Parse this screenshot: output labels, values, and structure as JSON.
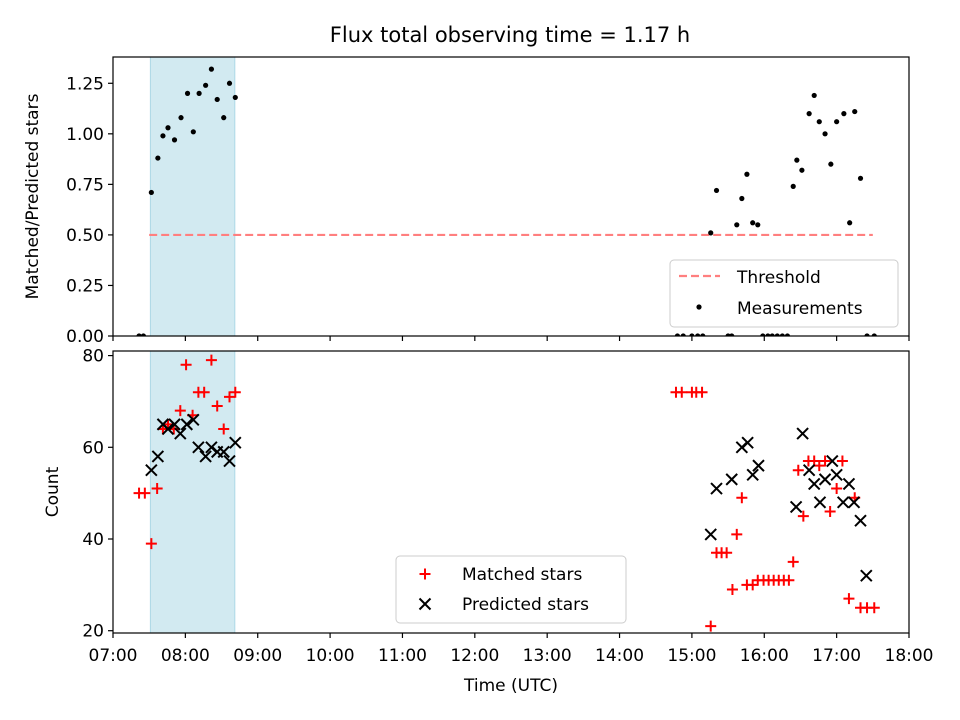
{
  "title": "Flux total observing time = 1.17 h",
  "chart_data": [
    {
      "type": "scatter",
      "ylabel": "Matched/Predicted stars",
      "xlim": [
        7.0,
        18.0
      ],
      "ylim": [
        0,
        1.38
      ],
      "yticks": [
        "0.00",
        "0.25",
        "0.50",
        "0.75",
        "1.00",
        "1.25"
      ],
      "shaded_interval": {
        "start": "07:31",
        "end": "08:41",
        "color": "#add8e6"
      },
      "threshold": {
        "name": "Threshold",
        "value": 0.5,
        "x_range": [
          7.5,
          17.5
        ],
        "color": "#ff7f7f"
      },
      "series": [
        {
          "name": "Measurements",
          "color": "#000000",
          "x": [
            7.36,
            7.42,
            7.53,
            7.62,
            7.69,
            7.76,
            7.85,
            7.94,
            8.03,
            8.11,
            8.19,
            8.28,
            8.36,
            8.44,
            8.53,
            8.61,
            8.69,
            14.8,
            14.88,
            15.0,
            15.08,
            15.15,
            15.26,
            15.34,
            15.5,
            15.55,
            15.62,
            15.69,
            15.76,
            15.84,
            15.91,
            15.98,
            16.05,
            16.11,
            16.18,
            16.25,
            16.32,
            16.4,
            16.45,
            16.52,
            16.62,
            16.69,
            16.76,
            16.84,
            16.92,
            17.0,
            17.1,
            17.18,
            17.25,
            17.33,
            17.42,
            17.52
          ],
          "y": [
            0,
            0,
            0.71,
            0.88,
            0.99,
            1.03,
            0.97,
            1.08,
            1.2,
            1.01,
            1.2,
            1.24,
            1.32,
            1.17,
            1.08,
            1.25,
            1.18,
            0,
            0,
            0,
            0,
            0,
            0.51,
            0.72,
            0,
            0,
            0.55,
            0.68,
            0.8,
            0.56,
            0.55,
            0,
            0,
            0,
            0,
            0,
            0,
            0.74,
            0.87,
            0.82,
            1.1,
            1.19,
            1.06,
            1.0,
            0.85,
            1.06,
            1.1,
            0.56,
            1.11,
            0.78,
            0,
            0
          ]
        }
      ],
      "legend": {
        "position": "lower-right",
        "entries": [
          "Threshold",
          "Measurements"
        ]
      }
    },
    {
      "type": "scatter",
      "xlabel": "Time (UTC)",
      "ylabel": "Count",
      "xlim": [
        7.0,
        18.0
      ],
      "ylim": [
        19.5,
        81
      ],
      "yticks": [
        "20",
        "40",
        "60",
        "80"
      ],
      "xticks": [
        "07:00",
        "08:00",
        "09:00",
        "10:00",
        "11:00",
        "12:00",
        "13:00",
        "14:00",
        "15:00",
        "16:00",
        "17:00",
        "18:00"
      ],
      "shaded_interval": {
        "start": "07:31",
        "end": "08:41",
        "color": "#add8e6"
      },
      "series": [
        {
          "name": "Matched stars",
          "marker": "plus",
          "color": "#ff0000",
          "x": [
            7.36,
            7.44,
            7.53,
            7.61,
            7.69,
            7.76,
            7.84,
            7.93,
            8.01,
            8.1,
            8.18,
            8.26,
            8.36,
            8.44,
            8.53,
            8.61,
            8.69,
            14.78,
            14.86,
            15.0,
            15.06,
            15.14,
            15.26,
            15.34,
            15.41,
            15.48,
            15.56,
            15.62,
            15.69,
            15.76,
            15.84,
            15.91,
            15.99,
            16.06,
            16.13,
            16.2,
            16.27,
            16.34,
            16.4,
            16.47,
            16.54,
            16.61,
            16.69,
            16.76,
            16.84,
            16.91,
            17.0,
            17.08,
            17.17,
            17.25,
            17.33,
            17.42,
            17.52
          ],
          "y": [
            50,
            50,
            39,
            51,
            64,
            65,
            64,
            68,
            78,
            67,
            72,
            72,
            79,
            69,
            64,
            71,
            72,
            72,
            72,
            72,
            72,
            72,
            21,
            37,
            37,
            37,
            29,
            41,
            49,
            30,
            30,
            31,
            31,
            31,
            31,
            31,
            31,
            31,
            35,
            55,
            45,
            57,
            57,
            56,
            57,
            46,
            51,
            57,
            27,
            49,
            25,
            25,
            25
          ]
        },
        {
          "name": "Predicted stars",
          "marker": "x",
          "color": "#000000",
          "x": [
            7.53,
            7.62,
            7.69,
            7.76,
            7.85,
            7.93,
            8.02,
            8.11,
            8.18,
            8.28,
            8.36,
            8.44,
            8.53,
            8.61,
            8.69,
            15.26,
            15.34,
            15.55,
            15.69,
            15.77,
            15.84,
            15.92,
            16.44,
            16.53,
            16.62,
            16.69,
            16.77,
            16.84,
            16.94,
            17.0,
            17.09,
            17.17,
            17.24,
            17.33,
            17.41
          ],
          "y": [
            55,
            58,
            65,
            64,
            65,
            63,
            65,
            66,
            60,
            58,
            60,
            59,
            59,
            57,
            61,
            41,
            51,
            53,
            60,
            61,
            54,
            56,
            47,
            63,
            55,
            52,
            48,
            53,
            57,
            54,
            48,
            52,
            48,
            44,
            32
          ]
        }
      ],
      "legend": {
        "position": "lower-center",
        "entries": [
          "Matched stars",
          "Predicted stars"
        ]
      }
    }
  ]
}
